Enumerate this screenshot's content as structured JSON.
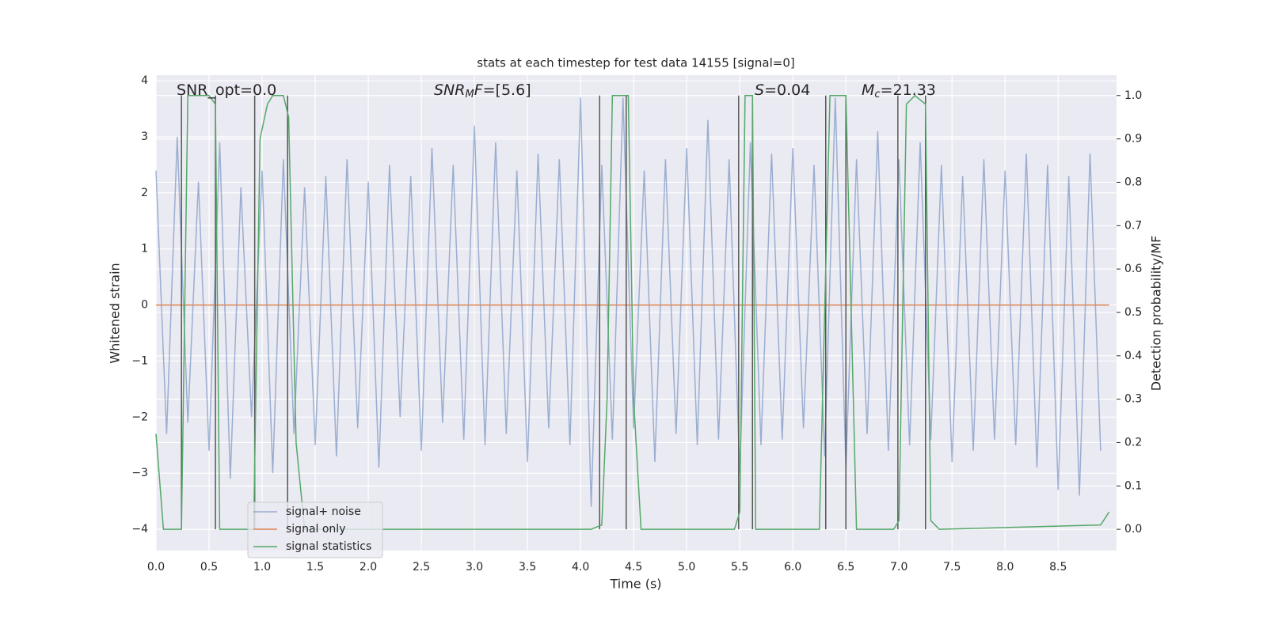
{
  "chart_data": {
    "type": "line",
    "title": "stats at each timestep for test data 14155 [signal=0]",
    "xlabel": "Time (s)",
    "ylabel": "Whitened strain",
    "y2label": "Detection probability/MF",
    "xlim": [
      0,
      9.05
    ],
    "ylim": [
      -4.38,
      4.1
    ],
    "y2lim": [
      -0.049,
      1.047
    ],
    "xticks": [
      {
        "value": 0,
        "label": "0.0"
      },
      0.5,
      {
        "value": 1,
        "label": "1.0"
      },
      1.5,
      {
        "value": 2,
        "label": "2.0"
      },
      2.5,
      {
        "value": 3,
        "label": "3.0"
      },
      3.5,
      {
        "value": 4,
        "label": "4.0"
      },
      4.5,
      {
        "value": 5,
        "label": "5.0"
      },
      5.5,
      {
        "value": 6,
        "label": "6.0"
      },
      6.5,
      {
        "value": 7,
        "label": "7.0"
      },
      7.5,
      {
        "value": 8,
        "label": "8.0"
      },
      8.5
    ],
    "yticks": [
      {
        "value": -4,
        "label": "−4"
      },
      {
        "value": -3,
        "label": "−3"
      },
      {
        "value": -2,
        "label": "−2"
      },
      {
        "value": -1,
        "label": "−1"
      },
      0,
      1,
      2,
      3,
      4
    ],
    "y2ticks": [
      {
        "value": 0,
        "label": "0.0"
      },
      0.1,
      0.2,
      0.3,
      0.4,
      0.5,
      0.6,
      0.7,
      0.8,
      0.9,
      {
        "value": 1,
        "label": "1.0"
      }
    ],
    "grid": true,
    "legend": "lower left",
    "series": [
      {
        "name": "signal+ noise",
        "color": "#4c72b0",
        "opacity": 0.5,
        "x": [
          0,
          0.1,
          0.2,
          0.3,
          0.4,
          0.5,
          0.6,
          0.7,
          0.8,
          0.9,
          1,
          1.1,
          1.2,
          1.3,
          1.4,
          1.5,
          1.6,
          1.7,
          1.8,
          1.9,
          2,
          2.1,
          2.2,
          2.3,
          2.4,
          2.5,
          2.6,
          2.7,
          2.8,
          2.9,
          3,
          3.1,
          3.2,
          3.3,
          3.4,
          3.5,
          3.6,
          3.7,
          3.8,
          3.9,
          4,
          4.1,
          4.2,
          4.3,
          4.4,
          4.5,
          4.6,
          4.7,
          4.8,
          4.9,
          5,
          5.1,
          5.2,
          5.3,
          5.4,
          5.5,
          5.6,
          5.7,
          5.8,
          5.9,
          6,
          6.1,
          6.2,
          6.3,
          6.4,
          6.5,
          6.6,
          6.7,
          6.8,
          6.9,
          7,
          7.1,
          7.2,
          7.3,
          7.4,
          7.5,
          7.6,
          7.7,
          7.8,
          7.9,
          8,
          8.1,
          8.2,
          8.3,
          8.4,
          8.5,
          8.6,
          8.7,
          8.8,
          8.9
        ],
        "values": [
          2.4,
          -2.3,
          3.0,
          -2.1,
          2.2,
          -2.6,
          2.9,
          -3.1,
          2.1,
          -2.0,
          2.4,
          -3.0,
          2.6,
          -2.3,
          2.1,
          -2.5,
          2.3,
          -2.7,
          2.6,
          -2.2,
          2.2,
          -2.9,
          2.5,
          -2.0,
          2.3,
          -2.6,
          2.8,
          -2.1,
          2.5,
          -2.4,
          3.2,
          -2.5,
          2.9,
          -2.3,
          2.4,
          -2.8,
          2.7,
          -2.2,
          2.6,
          -2.5,
          3.7,
          -3.6,
          2.5,
          -2.4,
          3.7,
          -2.2,
          2.4,
          -2.8,
          2.6,
          -2.3,
          2.8,
          -2.5,
          3.3,
          -2.4,
          2.6,
          -3.0,
          2.9,
          -2.5,
          2.7,
          -2.4,
          2.8,
          -2.2,
          2.5,
          -2.7,
          3.7,
          -2.9,
          2.6,
          -2.3,
          3.1,
          -2.6,
          2.6,
          -2.5,
          2.9,
          -2.4,
          2.5,
          -2.8,
          2.3,
          -2.6,
          2.6,
          -2.4,
          2.4,
          -2.5,
          2.7,
          -2.9,
          2.5,
          -3.3,
          2.3,
          -3.4,
          2.7,
          -2.6
        ]
      },
      {
        "name": "signal only",
        "color": "#dd8452",
        "x": [
          0,
          8.98
        ],
        "values": [
          0,
          0
        ]
      },
      {
        "name": "signal statistics",
        "color": "#55a868",
        "axis": "y2",
        "x": [
          0,
          0.07,
          0.24,
          0.3,
          0.5,
          0.56,
          0.6,
          0.92,
          0.98,
          1.05,
          1.1,
          1.2,
          1.25,
          1.32,
          1.4,
          4.1,
          4.2,
          4.25,
          4.3,
          4.45,
          4.5,
          4.57,
          5.45,
          5.5,
          5.55,
          5.62,
          5.65,
          6.25,
          6.35,
          6.5,
          6.55,
          6.6,
          6.95,
          7.0,
          7.07,
          7.15,
          7.25,
          7.3,
          7.38,
          8.9,
          8.98
        ],
        "values": [
          0.22,
          0,
          0,
          1.0,
          1.0,
          0.98,
          0,
          0,
          0.9,
          0.98,
          1.0,
          1.0,
          0.95,
          0.2,
          0,
          0,
          0.01,
          0.3,
          1.0,
          1.0,
          0.3,
          0,
          0,
          0.04,
          1.0,
          1.0,
          0,
          0,
          1.0,
          1.0,
          0.5,
          0,
          0,
          0.02,
          0.98,
          1.0,
          0.98,
          0.02,
          0,
          0.01,
          0.04
        ]
      }
    ],
    "vlines": {
      "color": "#555555",
      "x": [
        0.24,
        0.56,
        0.93,
        1.24,
        4.18,
        4.43,
        5.49,
        5.62,
        6.31,
        6.5,
        6.99,
        7.25
      ],
      "ymin": 0,
      "ymax": 1
    },
    "annotations": [
      [
        {
          "t": "SNR_opt=0.0"
        }
      ],
      [
        {
          "t": "SNR",
          "i": true
        },
        {
          "t": "M",
          "i": true,
          "sub": true
        },
        {
          "t": "F",
          "i": true
        },
        {
          "t": "=[5.6]"
        }
      ],
      [
        {
          "t": "S",
          "i": true
        },
        {
          "t": "=0.04"
        }
      ],
      [
        {
          "t": "M",
          "i": true
        },
        {
          "t": "c",
          "i": true,
          "sub": true
        },
        {
          "t": "=21.33"
        }
      ]
    ]
  }
}
